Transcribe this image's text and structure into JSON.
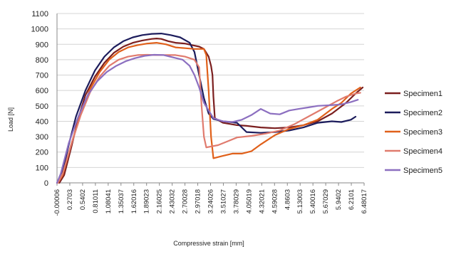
{
  "chart_data": {
    "type": "line",
    "title": "",
    "xlabel": "Compressive strain [mm]",
    "ylabel": "Load [N]",
    "xlim": [
      -6e-05,
      6.48017
    ],
    "ylim": [
      0,
      1100
    ],
    "y_ticks": [
      "0",
      "100",
      "200",
      "300",
      "400",
      "500",
      "600",
      "700",
      "800",
      "900",
      "1000",
      "1100"
    ],
    "x_tick_labels": [
      "-0.00006",
      "0.2703",
      "0.5402",
      "0.81011",
      "1.08041",
      "1.35037",
      "1.62016",
      "1.89023",
      "2.16025",
      "2.43032",
      "2.70028",
      "2.97018",
      "3.24026",
      "3.51027",
      "3.78029",
      "4.05019",
      "4.32021",
      "4.59028",
      "4.8603",
      "5.13003",
      "5.40016",
      "5.67029",
      "5.9402",
      "6.2101",
      "6.48017"
    ],
    "grid": "horizontal",
    "legend_position": "right",
    "series": [
      {
        "name": "Specimen1",
        "color": "#7b1f1f",
        "points": [
          [
            0.05,
            0
          ],
          [
            0.15,
            50
          ],
          [
            0.3,
            230
          ],
          [
            0.45,
            420
          ],
          [
            0.6,
            570
          ],
          [
            0.8,
            690
          ],
          [
            1.0,
            780
          ],
          [
            1.2,
            845
          ],
          [
            1.4,
            885
          ],
          [
            1.6,
            910
          ],
          [
            1.8,
            925
          ],
          [
            2.0,
            935
          ],
          [
            2.1,
            938
          ],
          [
            2.2,
            935
          ],
          [
            2.35,
            920
          ],
          [
            2.5,
            910
          ],
          [
            2.7,
            905
          ],
          [
            2.85,
            895
          ],
          [
            3.0,
            885
          ],
          [
            3.1,
            870
          ],
          [
            3.2,
            820
          ],
          [
            3.25,
            760
          ],
          [
            3.28,
            700
          ],
          [
            3.3,
            560
          ],
          [
            3.33,
            420
          ],
          [
            3.5,
            390
          ],
          [
            3.8,
            375
          ],
          [
            4.0,
            370
          ],
          [
            4.3,
            360
          ],
          [
            4.6,
            355
          ],
          [
            4.9,
            360
          ],
          [
            5.2,
            375
          ],
          [
            5.5,
            400
          ],
          [
            5.8,
            450
          ],
          [
            6.1,
            520
          ],
          [
            6.3,
            580
          ],
          [
            6.45,
            620
          ]
        ]
      },
      {
        "name": "Specimen2",
        "color": "#1c1c5c",
        "points": [
          [
            0.0,
            0
          ],
          [
            0.1,
            50
          ],
          [
            0.25,
            250
          ],
          [
            0.4,
            430
          ],
          [
            0.6,
            600
          ],
          [
            0.8,
            730
          ],
          [
            1.0,
            820
          ],
          [
            1.2,
            880
          ],
          [
            1.4,
            920
          ],
          [
            1.6,
            945
          ],
          [
            1.8,
            960
          ],
          [
            2.0,
            968
          ],
          [
            2.2,
            970
          ],
          [
            2.4,
            960
          ],
          [
            2.6,
            945
          ],
          [
            2.8,
            910
          ],
          [
            2.9,
            850
          ],
          [
            3.0,
            700
          ],
          [
            3.1,
            550
          ],
          [
            3.2,
            450
          ],
          [
            3.3,
            415
          ],
          [
            3.5,
            400
          ],
          [
            3.8,
            390
          ],
          [
            4.0,
            330
          ],
          [
            4.3,
            325
          ],
          [
            4.6,
            330
          ],
          [
            4.9,
            340
          ],
          [
            5.2,
            360
          ],
          [
            5.5,
            390
          ],
          [
            5.8,
            400
          ],
          [
            6.0,
            395
          ],
          [
            6.2,
            410
          ],
          [
            6.3,
            430
          ]
        ]
      },
      {
        "name": "Specimen3",
        "color": "#e0601a",
        "points": [
          [
            0.02,
            0
          ],
          [
            0.12,
            50
          ],
          [
            0.3,
            250
          ],
          [
            0.5,
            450
          ],
          [
            0.7,
            610
          ],
          [
            0.9,
            720
          ],
          [
            1.1,
            800
          ],
          [
            1.3,
            850
          ],
          [
            1.5,
            880
          ],
          [
            1.7,
            895
          ],
          [
            1.9,
            905
          ],
          [
            2.1,
            910
          ],
          [
            2.3,
            900
          ],
          [
            2.5,
            880
          ],
          [
            2.7,
            875
          ],
          [
            2.9,
            870
          ],
          [
            3.1,
            870
          ],
          [
            3.15,
            830
          ],
          [
            3.2,
            600
          ],
          [
            3.25,
            300
          ],
          [
            3.3,
            160
          ],
          [
            3.5,
            175
          ],
          [
            3.7,
            190
          ],
          [
            3.9,
            190
          ],
          [
            4.1,
            205
          ],
          [
            4.3,
            250
          ],
          [
            4.6,
            310
          ],
          [
            4.9,
            350
          ],
          [
            5.2,
            375
          ],
          [
            5.5,
            410
          ],
          [
            5.8,
            480
          ],
          [
            6.0,
            520
          ],
          [
            6.2,
            580
          ],
          [
            6.4,
            620
          ]
        ]
      },
      {
        "name": "Specimen4",
        "color": "#e07b6e",
        "points": [
          [
            0.02,
            0
          ],
          [
            0.12,
            60
          ],
          [
            0.3,
            250
          ],
          [
            0.5,
            440
          ],
          [
            0.7,
            590
          ],
          [
            0.9,
            690
          ],
          [
            1.1,
            760
          ],
          [
            1.3,
            800
          ],
          [
            1.5,
            820
          ],
          [
            1.7,
            830
          ],
          [
            1.9,
            832
          ],
          [
            2.1,
            830
          ],
          [
            2.3,
            830
          ],
          [
            2.5,
            830
          ],
          [
            2.7,
            820
          ],
          [
            2.9,
            800
          ],
          [
            3.0,
            750
          ],
          [
            3.05,
            500
          ],
          [
            3.1,
            300
          ],
          [
            3.15,
            230
          ],
          [
            3.4,
            245
          ],
          [
            3.6,
            270
          ],
          [
            3.8,
            295
          ],
          [
            4.1,
            305
          ],
          [
            4.4,
            320
          ],
          [
            4.7,
            340
          ],
          [
            5.0,
            380
          ],
          [
            5.3,
            430
          ],
          [
            5.6,
            480
          ],
          [
            5.9,
            530
          ],
          [
            6.1,
            560
          ],
          [
            6.3,
            580
          ],
          [
            6.4,
            585
          ]
        ]
      },
      {
        "name": "Specimen5",
        "color": "#8c6fc0",
        "points": [
          [
            0.0,
            0
          ],
          [
            0.08,
            60
          ],
          [
            0.25,
            260
          ],
          [
            0.45,
            430
          ],
          [
            0.65,
            570
          ],
          [
            0.85,
            660
          ],
          [
            1.05,
            720
          ],
          [
            1.25,
            760
          ],
          [
            1.45,
            790
          ],
          [
            1.65,
            810
          ],
          [
            1.85,
            825
          ],
          [
            2.05,
            832
          ],
          [
            2.25,
            830
          ],
          [
            2.45,
            815
          ],
          [
            2.65,
            800
          ],
          [
            2.8,
            760
          ],
          [
            2.9,
            700
          ],
          [
            3.0,
            620
          ],
          [
            3.1,
            520
          ],
          [
            3.3,
            420
          ],
          [
            3.5,
            400
          ],
          [
            3.7,
            395
          ],
          [
            3.9,
            410
          ],
          [
            4.1,
            440
          ],
          [
            4.3,
            480
          ],
          [
            4.5,
            450
          ],
          [
            4.7,
            445
          ],
          [
            4.9,
            470
          ],
          [
            5.1,
            480
          ],
          [
            5.3,
            490
          ],
          [
            5.5,
            500
          ],
          [
            5.8,
            505
          ],
          [
            6.0,
            510
          ],
          [
            6.2,
            525
          ],
          [
            6.35,
            540
          ]
        ]
      }
    ]
  }
}
